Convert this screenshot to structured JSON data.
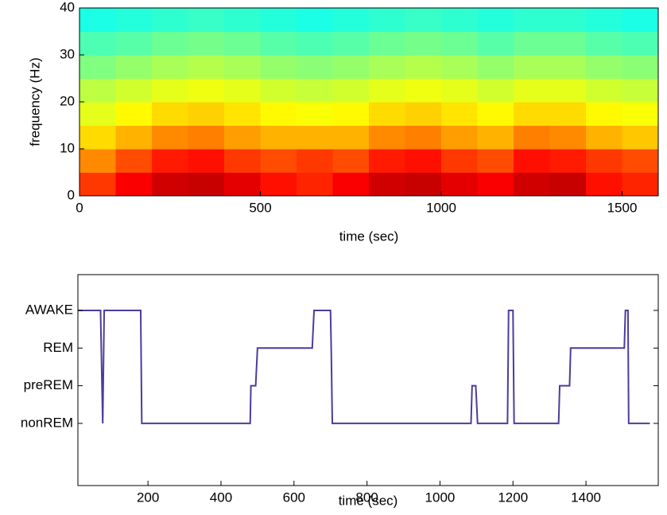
{
  "chart_data": [
    {
      "type": "heatmap",
      "colormap": "jet",
      "clim": [
        0,
        1
      ],
      "xlabel": "time (sec)",
      "ylabel": "frequency (Hz)",
      "x_bins": [
        0,
        100,
        200,
        300,
        400,
        500,
        600,
        700,
        800,
        900,
        1000,
        1100,
        1200,
        1300,
        1400,
        1500,
        1600
      ],
      "y_bins": [
        0,
        5,
        10,
        15,
        20,
        25,
        30,
        35,
        40
      ],
      "z": [
        [
          0.82,
          0.88,
          0.92,
          0.93,
          0.9,
          0.86,
          0.84,
          0.88,
          0.92,
          0.93,
          0.9,
          0.88,
          0.92,
          0.93,
          0.86,
          0.84
        ],
        [
          0.74,
          0.8,
          0.85,
          0.86,
          0.82,
          0.8,
          0.82,
          0.8,
          0.85,
          0.86,
          0.82,
          0.8,
          0.86,
          0.85,
          0.82,
          0.8
        ],
        [
          0.66,
          0.7,
          0.74,
          0.75,
          0.72,
          0.7,
          0.7,
          0.7,
          0.74,
          0.75,
          0.72,
          0.7,
          0.75,
          0.74,
          0.7,
          0.68
        ],
        [
          0.6,
          0.63,
          0.66,
          0.67,
          0.65,
          0.63,
          0.62,
          0.63,
          0.66,
          0.67,
          0.65,
          0.63,
          0.66,
          0.66,
          0.63,
          0.62
        ],
        [
          0.56,
          0.58,
          0.6,
          0.61,
          0.6,
          0.58,
          0.57,
          0.58,
          0.6,
          0.61,
          0.6,
          0.58,
          0.6,
          0.6,
          0.58,
          0.57
        ],
        [
          0.5,
          0.52,
          0.54,
          0.55,
          0.54,
          0.52,
          0.51,
          0.52,
          0.54,
          0.55,
          0.54,
          0.52,
          0.54,
          0.54,
          0.52,
          0.51
        ],
        [
          0.45,
          0.46,
          0.48,
          0.49,
          0.48,
          0.46,
          0.45,
          0.46,
          0.48,
          0.49,
          0.48,
          0.46,
          0.48,
          0.48,
          0.46,
          0.45
        ],
        [
          0.4,
          0.41,
          0.42,
          0.43,
          0.42,
          0.41,
          0.4,
          0.41,
          0.42,
          0.43,
          0.42,
          0.41,
          0.42,
          0.42,
          0.41,
          0.4
        ]
      ],
      "xlim": [
        0,
        1600
      ],
      "xticks": [
        0,
        500,
        1000,
        1500
      ],
      "ylim": [
        0,
        40
      ],
      "yticks": [
        0,
        10,
        20,
        30,
        40
      ]
    },
    {
      "type": "line",
      "xlabel": "time (sec)",
      "color": "#4b3c9c",
      "x": [
        8,
        70,
        76,
        80,
        180,
        183,
        480,
        482,
        495,
        500,
        650,
        655,
        700,
        702,
        705,
        1085,
        1088,
        1098,
        1103,
        1185,
        1188,
        1200,
        1203,
        1325,
        1328,
        1355,
        1358,
        1505,
        1508,
        1515,
        1517,
        1575
      ],
      "values": [
        4,
        4,
        1,
        4,
        4,
        1,
        1,
        2,
        2,
        3,
        3,
        4,
        4,
        3,
        1,
        1,
        2,
        2,
        1,
        1,
        4,
        4,
        1,
        1,
        2,
        2,
        3,
        3,
        4,
        4,
        1,
        1
      ],
      "xlim": [
        8,
        1598
      ],
      "xticks": [
        200,
        400,
        600,
        800,
        1000,
        1200,
        1400
      ],
      "ylim": [
        -0.65,
        4.95
      ],
      "yticks": [
        {
          "value": 1,
          "label": "nonREM"
        },
        {
          "value": 2,
          "label": "preREM"
        },
        {
          "value": 3,
          "label": "REM"
        },
        {
          "value": 4,
          "label": "AWAKE"
        }
      ]
    }
  ]
}
